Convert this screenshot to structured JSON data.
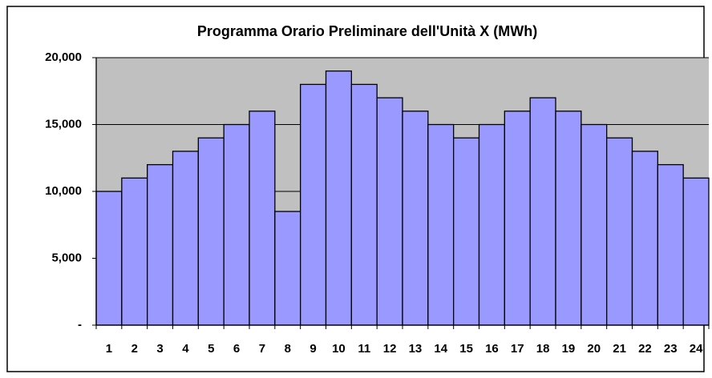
{
  "chart_data": {
    "type": "bar",
    "title": "Programma Orario Preliminare dell'Unità X (MWh)",
    "categories": [
      "1",
      "2",
      "3",
      "4",
      "5",
      "6",
      "7",
      "8",
      "9",
      "10",
      "11",
      "12",
      "13",
      "14",
      "15",
      "16",
      "17",
      "18",
      "19",
      "20",
      "21",
      "22",
      "23",
      "24"
    ],
    "values": [
      10000,
      11000,
      12000,
      13000,
      14000,
      15000,
      16000,
      8500,
      18000,
      19000,
      18000,
      17000,
      16000,
      15000,
      14000,
      15000,
      16000,
      17000,
      16000,
      15000,
      14000,
      13000,
      12000,
      11000
    ],
    "color": "#9999ff",
    "ylim": [
      0,
      20000
    ],
    "yticks": [
      {
        "value": 0,
        "label": "-"
      },
      {
        "value": 5000,
        "label": "5,000"
      },
      {
        "value": 10000,
        "label": "10,000"
      },
      {
        "value": 15000,
        "label": "15,000"
      },
      {
        "value": 20000,
        "label": "20,000"
      }
    ],
    "grid": true
  }
}
